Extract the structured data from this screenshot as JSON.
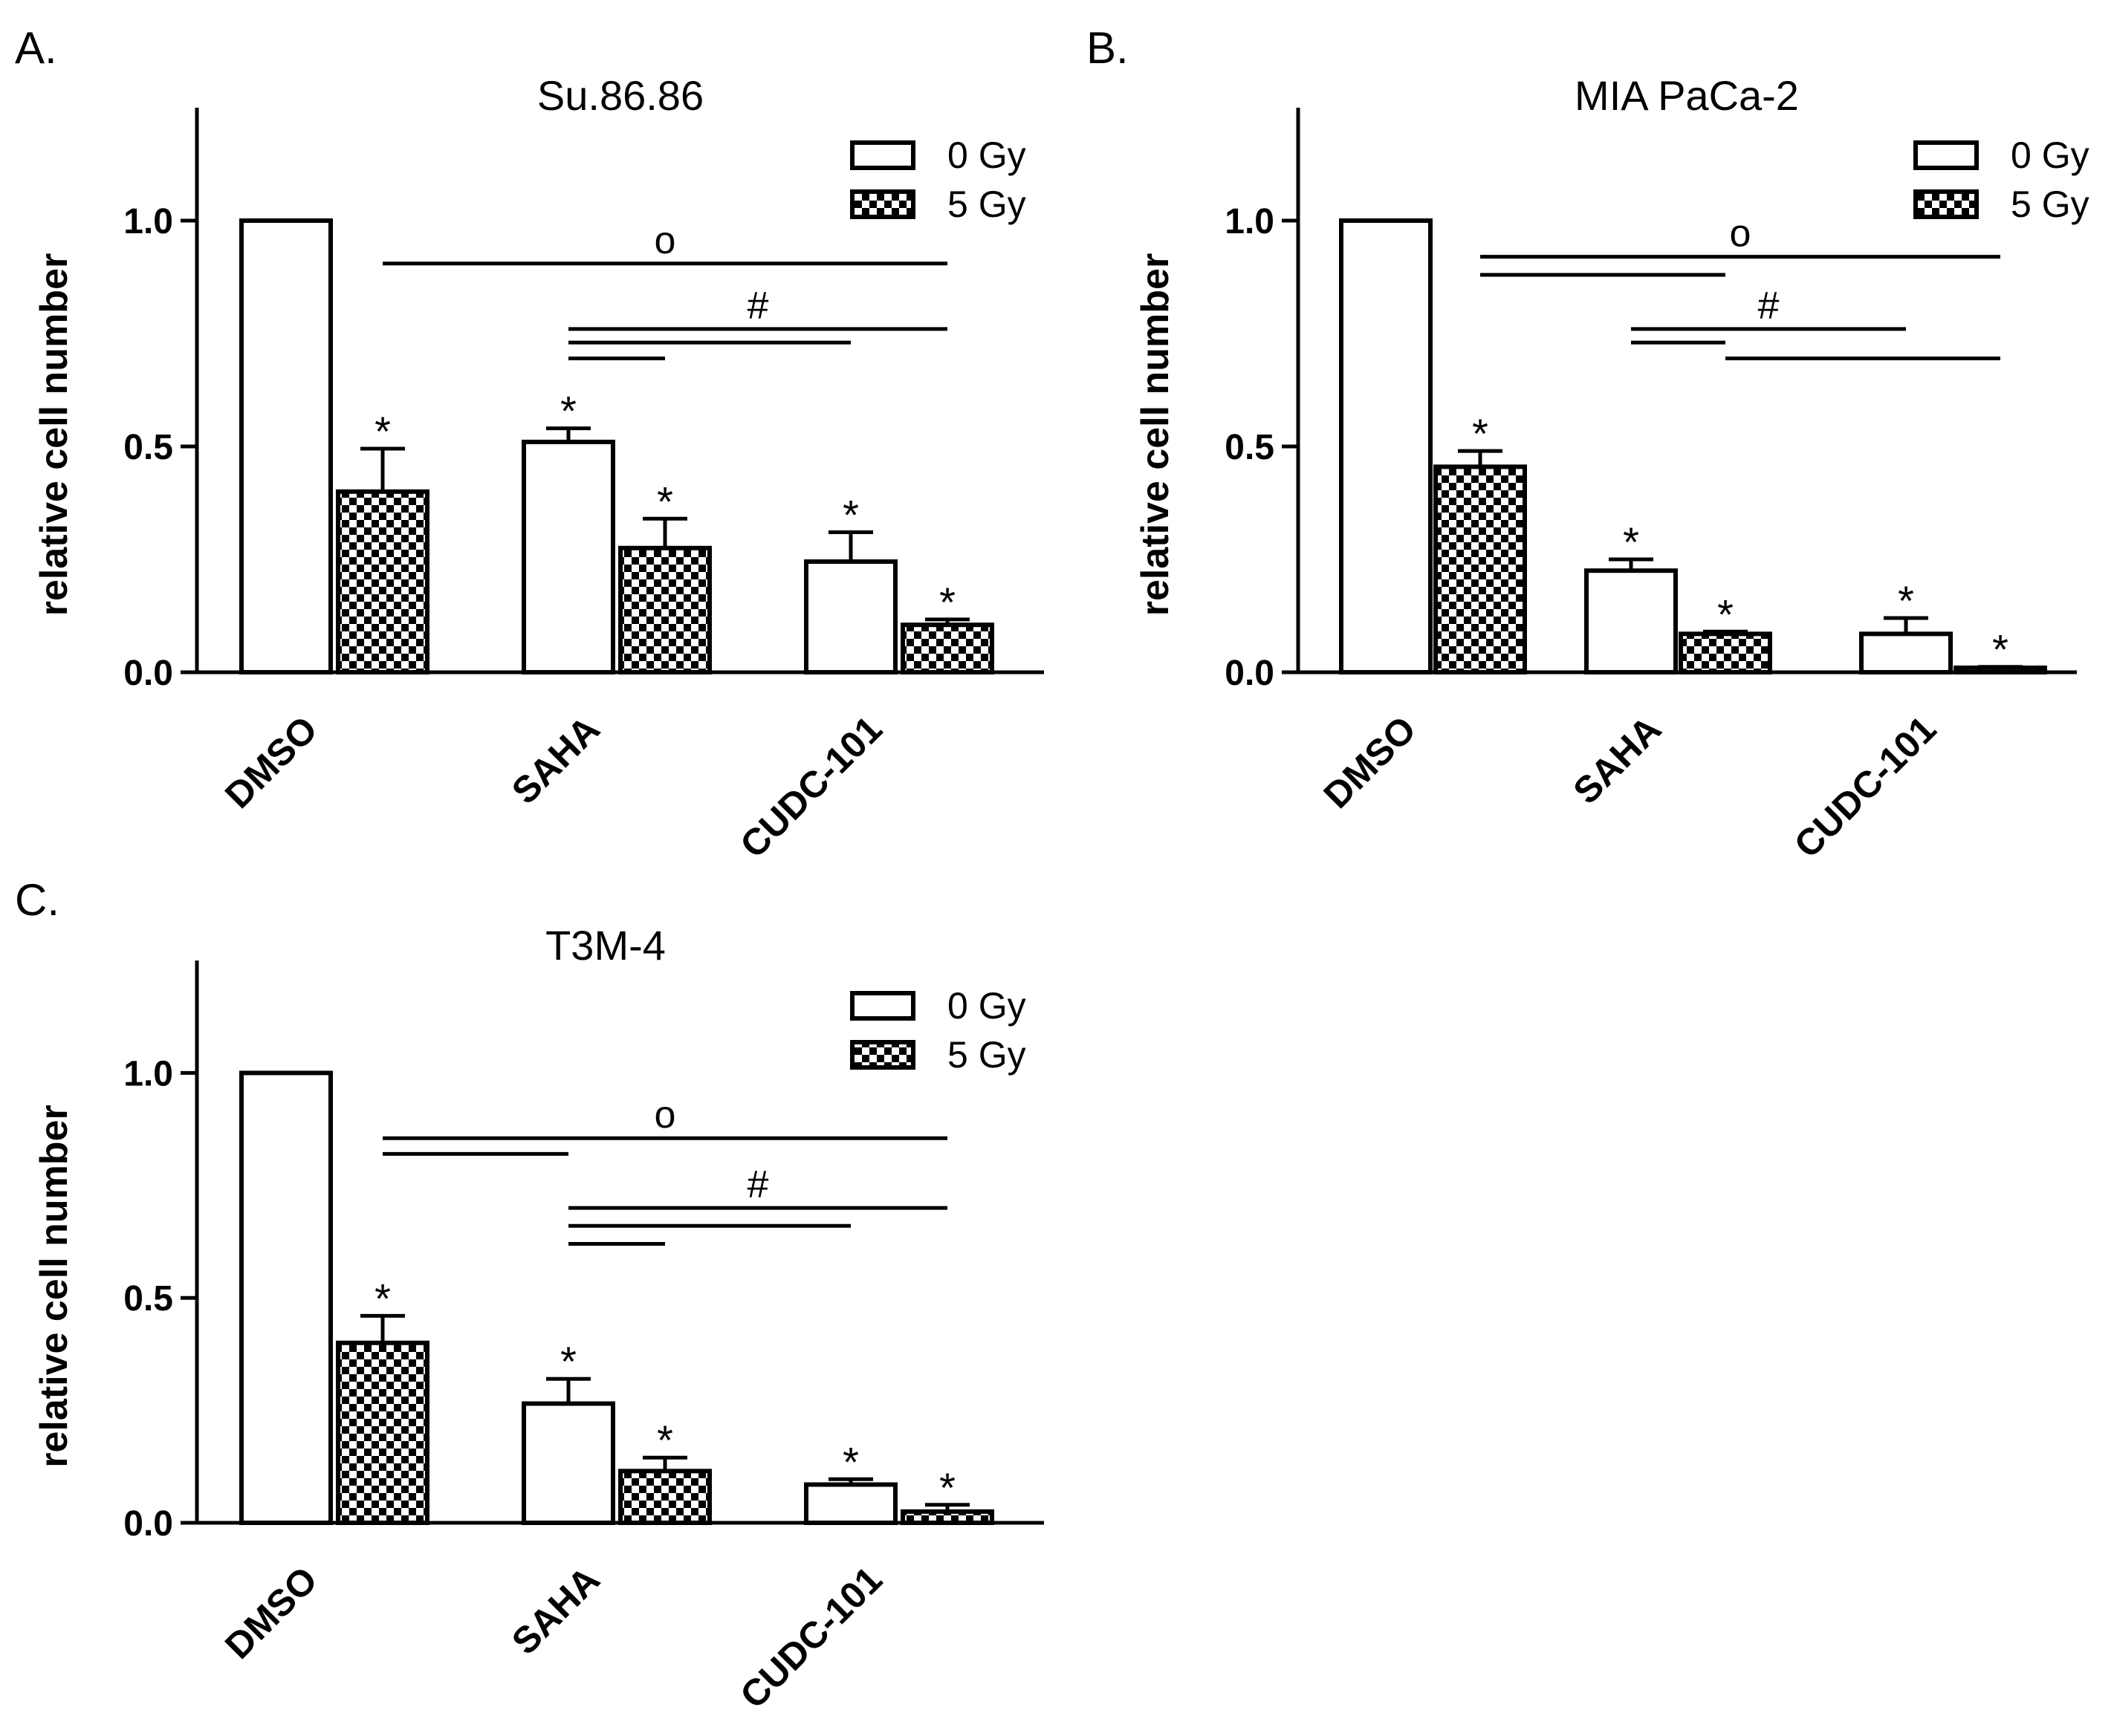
{
  "chart_data": [
    {
      "type": "bar",
      "panel_label": "A.",
      "title": "Su.86.86",
      "xlabel": "",
      "ylabel": "relative cell number",
      "ylim": [
        0,
        1.25
      ],
      "yticks": [
        "0.0",
        "0.5",
        "1.0"
      ],
      "ytick_values": [
        0,
        0.5,
        1.0
      ],
      "categories": [
        "DMSO",
        "SAHA",
        "CUDC-101"
      ],
      "series": [
        {
          "name": "0 Gy",
          "pattern": "open",
          "values": [
            1.0,
            0.51,
            0.245
          ],
          "errors": [
            0,
            0.03,
            0.065
          ],
          "markers": [
            "",
            "*",
            "*"
          ]
        },
        {
          "name": "5 Gy",
          "pattern": "checker",
          "values": [
            0.4,
            0.275,
            0.105
          ],
          "errors": [
            0.095,
            0.065,
            0.012
          ],
          "markers": [
            "*",
            "*",
            "*"
          ]
        }
      ],
      "legend_position": "top-right",
      "significance": [
        {
          "symbol": "o",
          "lines": [
            {
              "from": "DMSO/5 Gy",
              "to": "CUDC-101/5 Gy",
              "level": 0.905
            }
          ]
        },
        {
          "symbol": "#",
          "lines": [
            {
              "from": "SAHA/0 Gy",
              "to": "CUDC-101/5 Gy",
              "level": 0.76
            },
            {
              "from": "SAHA/0 Gy",
              "to": "CUDC-101/0 Gy",
              "level": 0.73
            },
            {
              "from": "SAHA/0 Gy",
              "to": "SAHA/5 Gy",
              "level": 0.695
            }
          ]
        }
      ]
    },
    {
      "type": "bar",
      "panel_label": "B.",
      "title": "MIA PaCa-2",
      "xlabel": "",
      "ylabel": "relative cell number",
      "ylim": [
        0,
        1.25
      ],
      "yticks": [
        "0.0",
        "0.5",
        "1.0"
      ],
      "ytick_values": [
        0,
        0.5,
        1.0
      ],
      "categories": [
        "DMSO",
        "SAHA",
        "CUDC-101"
      ],
      "series": [
        {
          "name": "0 Gy",
          "pattern": "open",
          "values": [
            1.0,
            0.225,
            0.085
          ],
          "errors": [
            0,
            0.025,
            0.035
          ],
          "markers": [
            "",
            "*",
            "*"
          ]
        },
        {
          "name": "5 Gy",
          "pattern": "checker",
          "values": [
            0.455,
            0.085,
            0.01
          ],
          "errors": [
            0.035,
            0.005,
            0.002
          ],
          "markers": [
            "*",
            "*",
            "*"
          ]
        }
      ],
      "legend_position": "top-right",
      "significance": [
        {
          "symbol": "o",
          "lines": [
            {
              "from": "DMSO/5 Gy",
              "to": "CUDC-101/5 Gy",
              "level": 0.92
            },
            {
              "from": "DMSO/5 Gy",
              "to": "SAHA/5 Gy",
              "level": 0.88
            }
          ]
        },
        {
          "symbol": "#",
          "lines": [
            {
              "from": "SAHA/0 Gy",
              "to": "CUDC-101/0 Gy",
              "level": 0.76
            },
            {
              "from": "SAHA/0 Gy",
              "to": "SAHA/5 Gy",
              "level": 0.73
            },
            {
              "from": "SAHA/5 Gy",
              "to": "CUDC-101/5 Gy",
              "level": 0.695
            }
          ]
        }
      ]
    },
    {
      "type": "bar",
      "panel_label": "C.",
      "title": "T3M-4",
      "xlabel": "",
      "ylabel": "relative cell number",
      "ylim": [
        0,
        1.25
      ],
      "yticks": [
        "0.0",
        "0.5",
        "1.0"
      ],
      "ytick_values": [
        0,
        0.5,
        1.0
      ],
      "categories": [
        "DMSO",
        "SAHA",
        "CUDC-101"
      ],
      "series": [
        {
          "name": "0 Gy",
          "pattern": "open",
          "values": [
            1.0,
            0.265,
            0.085
          ],
          "errors": [
            0,
            0.055,
            0.012
          ],
          "markers": [
            "",
            "*",
            "*"
          ]
        },
        {
          "name": "5 Gy",
          "pattern": "checker",
          "values": [
            0.4,
            0.115,
            0.025
          ],
          "errors": [
            0.06,
            0.03,
            0.015
          ],
          "markers": [
            "*",
            "*",
            "*"
          ]
        }
      ],
      "legend_position": "top-right",
      "significance": [
        {
          "symbol": "o",
          "lines": [
            {
              "from": "DMSO/5 Gy",
              "to": "CUDC-101/5 Gy",
              "level": 0.855
            },
            {
              "from": "DMSO/5 Gy",
              "to": "SAHA/0 Gy",
              "level": 0.82
            }
          ]
        },
        {
          "symbol": "#",
          "lines": [
            {
              "from": "SAHA/0 Gy",
              "to": "CUDC-101/5 Gy",
              "level": 0.7
            },
            {
              "from": "SAHA/0 Gy",
              "to": "CUDC-101/0 Gy",
              "level": 0.66
            },
            {
              "from": "SAHA/0 Gy",
              "to": "SAHA/5 Gy",
              "level": 0.62
            }
          ]
        }
      ]
    }
  ]
}
